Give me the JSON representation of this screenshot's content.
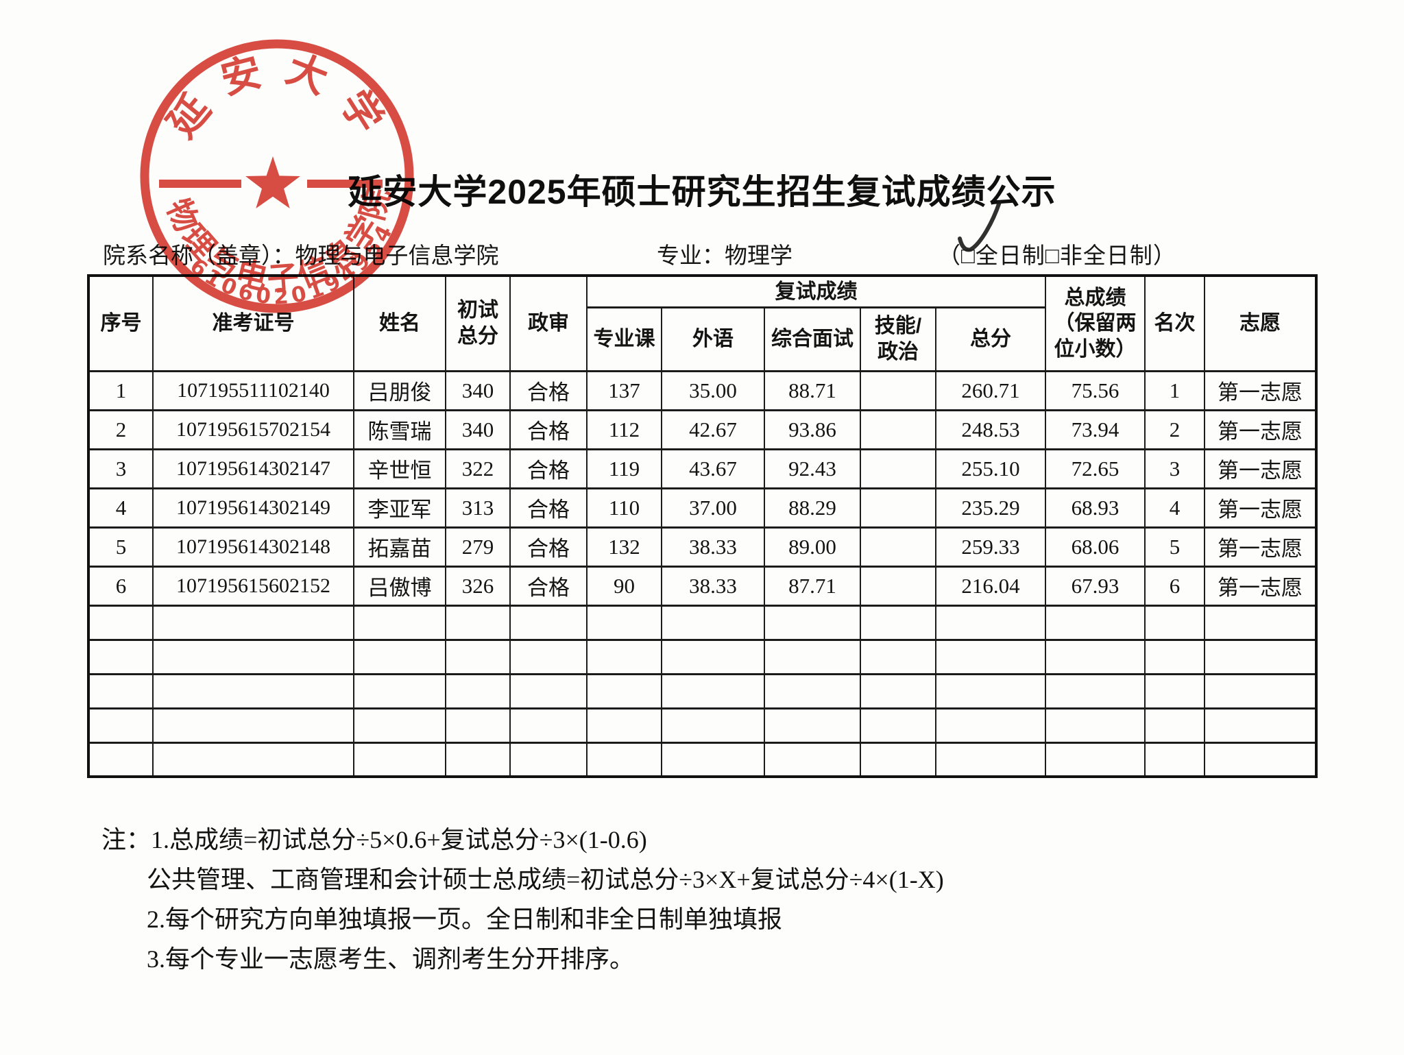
{
  "title": "延安大学2025年硕士研究生招生复试成绩公示",
  "info": {
    "department_label": "院系名称（盖章）：",
    "department": "物理与电子信息学院",
    "major_label": "专业：",
    "major": "物理学",
    "mode_options": "（□全日制□非全日制）",
    "mode_checked": "全日制"
  },
  "seal": {
    "top_text": "延安大学",
    "bottom_text": "物理与电子信息学院",
    "number": "6106020194954",
    "color": "#d5342a"
  },
  "table": {
    "headers": {
      "seq": "序号",
      "admission_no": "准考证号",
      "name": "姓名",
      "initial_total": "初试\n总分",
      "political_review": "政审",
      "retest_group": "复试成绩",
      "major_course": "专业课",
      "foreign_language": "外语",
      "comprehensive_interview": "综合面试",
      "skill_politics": "技能/\n政治",
      "retest_total": "总分",
      "final_score": "总成绩\n（保留两\n位小数）",
      "rank": "名次",
      "preference": "志愿"
    },
    "col_keys": [
      "seq",
      "admission_no",
      "name",
      "initial_total",
      "political_review",
      "major_course",
      "foreign_language",
      "comprehensive_interview",
      "skill_politics",
      "retest_total",
      "final_score",
      "rank",
      "preference"
    ],
    "rows": [
      [
        "1",
        "107195511102140",
        "吕朋俊",
        "340",
        "合格",
        "137",
        "35.00",
        "88.71",
        "",
        "260.71",
        "75.56",
        "1",
        "第一志愿"
      ],
      [
        "2",
        "107195615702154",
        "陈雪瑞",
        "340",
        "合格",
        "112",
        "42.67",
        "93.86",
        "",
        "248.53",
        "73.94",
        "2",
        "第一志愿"
      ],
      [
        "3",
        "107195614302147",
        "辛世恒",
        "322",
        "合格",
        "119",
        "43.67",
        "92.43",
        "",
        "255.10",
        "72.65",
        "3",
        "第一志愿"
      ],
      [
        "4",
        "107195614302149",
        "李亚军",
        "313",
        "合格",
        "110",
        "37.00",
        "88.29",
        "",
        "235.29",
        "68.93",
        "4",
        "第一志愿"
      ],
      [
        "5",
        "107195614302148",
        "拓嘉苗",
        "279",
        "合格",
        "132",
        "38.33",
        "89.00",
        "",
        "259.33",
        "68.06",
        "5",
        "第一志愿"
      ],
      [
        "6",
        "107195615602152",
        "吕傲博",
        "326",
        "合格",
        "90",
        "38.33",
        "87.71",
        "",
        "216.04",
        "67.93",
        "6",
        "第一志愿"
      ]
    ],
    "empty_row_count": 5
  },
  "notes": {
    "prefix": "注：",
    "lines": [
      "1.总成绩=初试总分÷5×0.6+复试总分÷3×(1-0.6)",
      "公共管理、工商管理和会计硕士总成绩=初试总分÷3×X+复试总分÷4×(1-X)",
      "2.每个研究方向单独填报一页。全日制和非全日制单独填报",
      "3.每个专业一志愿考生、调剂考生分开排序。"
    ]
  }
}
